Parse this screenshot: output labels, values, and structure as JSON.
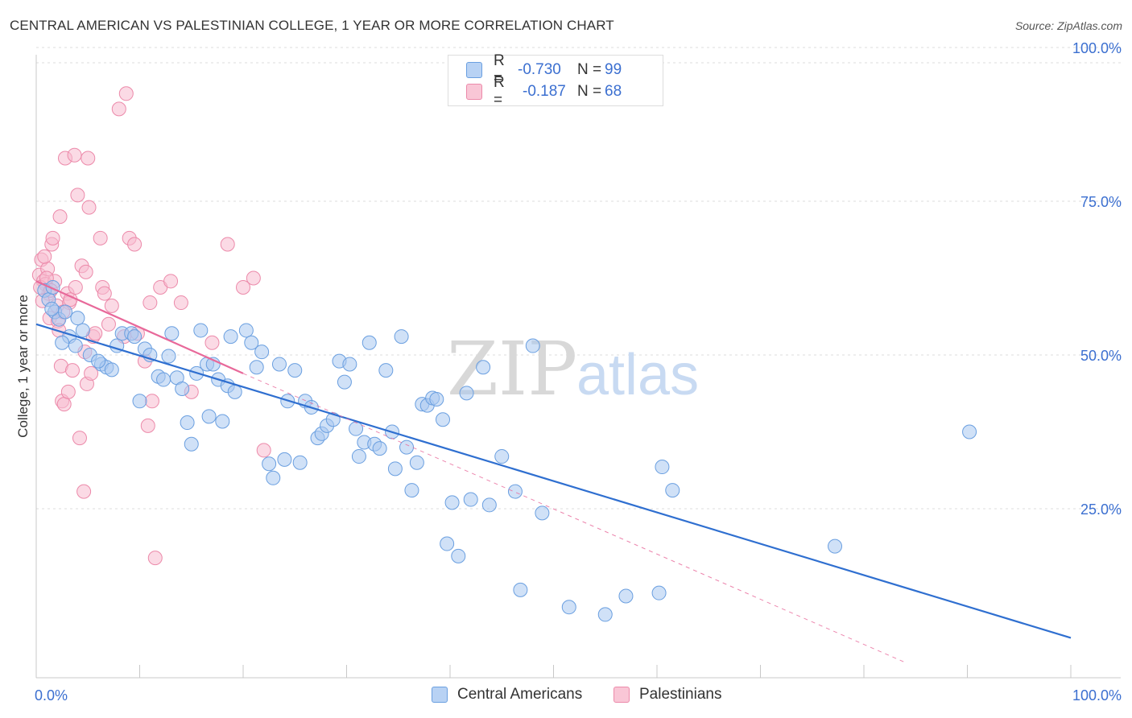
{
  "header": {
    "title": "CENTRAL AMERICAN VS PALESTINIAN COLLEGE, 1 YEAR OR MORE CORRELATION CHART",
    "source": "Source: ZipAtlas.com"
  },
  "watermark": {
    "zip": "ZIP",
    "atlas": "atlas"
  },
  "legend_top": {
    "rows": [
      {
        "r_label": "R =",
        "r_value": "-0.730",
        "n_label": "N =",
        "n_value": "99"
      },
      {
        "r_label": "R =",
        "r_value": "-0.187",
        "n_label": "N =",
        "n_value": "68"
      }
    ]
  },
  "legend_bottom": {
    "items": [
      "Central Americans",
      "Palestinians"
    ]
  },
  "colors": {
    "blue_fill": "#aac8f0",
    "blue_stroke": "#6a9fe0",
    "blue_line": "#2f6fd0",
    "pink_fill": "#f8bcd0",
    "pink_stroke": "#ec8aaa",
    "pink_line": "#e8699a",
    "grid": "#dcdcdc",
    "axis_text": "#3b6fd0"
  },
  "chart_data": {
    "type": "scatter",
    "title": "CENTRAL AMERICAN VS PALESTINIAN COLLEGE, 1 YEAR OR MORE CORRELATION CHART",
    "xlabel": "",
    "ylabel": "College, 1 year or more",
    "xlim": [
      0,
      100
    ],
    "ylim": [
      0,
      100
    ],
    "x_tick_labels": [
      "0.0%",
      "100.0%"
    ],
    "y_tick_labels": [
      "100.0%",
      "75.0%",
      "50.0%",
      "25.0%"
    ],
    "y_ticks": [
      100,
      75,
      50,
      25
    ],
    "grid": true,
    "legend_position": "top-center",
    "series": [
      {
        "name": "Central Americans",
        "r": -0.73,
        "n": 99,
        "trend": {
          "x": [
            0,
            100
          ],
          "y": [
            55.0,
            4.0
          ]
        },
        "points": [
          [
            0.8,
            60.5
          ],
          [
            1.2,
            59
          ],
          [
            1.6,
            61
          ],
          [
            1.8,
            57
          ],
          [
            2.2,
            55.8
          ],
          [
            2.8,
            57
          ],
          [
            3.2,
            53
          ],
          [
            3.8,
            51.5
          ],
          [
            4.5,
            54
          ],
          [
            5.2,
            50
          ],
          [
            6.3,
            48.5
          ],
          [
            6.8,
            48
          ],
          [
            7.3,
            47.6
          ],
          [
            7.8,
            51.5
          ],
          [
            8.3,
            53.5
          ],
          [
            9.2,
            53.5
          ],
          [
            9.5,
            53
          ],
          [
            10,
            42.5
          ],
          [
            10.5,
            51
          ],
          [
            11,
            50
          ],
          [
            11.8,
            46.5
          ],
          [
            12.3,
            46
          ],
          [
            12.8,
            49.8
          ],
          [
            13.1,
            53.5
          ],
          [
            13.6,
            46.3
          ],
          [
            14.1,
            44.5
          ],
          [
            14.6,
            39
          ],
          [
            15,
            35.5
          ],
          [
            15.5,
            47
          ],
          [
            15.9,
            54
          ],
          [
            16.5,
            48.5
          ],
          [
            16.7,
            40
          ],
          [
            17.1,
            48.5
          ],
          [
            17.6,
            46
          ],
          [
            18,
            39.2
          ],
          [
            18.5,
            45
          ],
          [
            18.8,
            53
          ],
          [
            19.2,
            44
          ],
          [
            20.3,
            54
          ],
          [
            20.8,
            52
          ],
          [
            21.3,
            48
          ],
          [
            21.8,
            50.5
          ],
          [
            22.5,
            32.3
          ],
          [
            22.9,
            30
          ],
          [
            23.5,
            48.5
          ],
          [
            24,
            33
          ],
          [
            24.3,
            42.5
          ],
          [
            25,
            47.5
          ],
          [
            25.5,
            32.5
          ],
          [
            26,
            42.5
          ],
          [
            26.6,
            41.5
          ],
          [
            27.2,
            36.5
          ],
          [
            27.6,
            37.2
          ],
          [
            28.1,
            38.5
          ],
          [
            28.7,
            39.5
          ],
          [
            29.3,
            49
          ],
          [
            29.8,
            45.6
          ],
          [
            30.3,
            48.5
          ],
          [
            30.9,
            38
          ],
          [
            31.2,
            33.5
          ],
          [
            31.7,
            35.8
          ],
          [
            32.2,
            52
          ],
          [
            32.7,
            35.5
          ],
          [
            33.2,
            34.8
          ],
          [
            33.8,
            47.5
          ],
          [
            34.4,
            37.5
          ],
          [
            34.7,
            31.5
          ],
          [
            35.3,
            53
          ],
          [
            35.8,
            35
          ],
          [
            36.3,
            28
          ],
          [
            36.8,
            32.5
          ],
          [
            37.3,
            42
          ],
          [
            37.8,
            41.8
          ],
          [
            38.3,
            43
          ],
          [
            38.7,
            42.8
          ],
          [
            39.3,
            39.5
          ],
          [
            39.7,
            19.3
          ],
          [
            40.2,
            26
          ],
          [
            40.8,
            17.3
          ],
          [
            41.6,
            43.8
          ],
          [
            42,
            26.5
          ],
          [
            43.2,
            48
          ],
          [
            43.8,
            25.6
          ],
          [
            45,
            33.5
          ],
          [
            46.3,
            27.8
          ],
          [
            46.8,
            11.8
          ],
          [
            48,
            51.5
          ],
          [
            48.9,
            24.3
          ],
          [
            51.5,
            9
          ],
          [
            55,
            7.8
          ],
          [
            57,
            10.8
          ],
          [
            60.2,
            11.3
          ],
          [
            60.5,
            31.8
          ],
          [
            61.5,
            28
          ],
          [
            77.2,
            18.9
          ],
          [
            90.2,
            37.5
          ],
          [
            1.5,
            57.5
          ],
          [
            2.5,
            52
          ],
          [
            4,
            56
          ],
          [
            6,
            49
          ]
        ]
      },
      {
        "name": "Palestinians",
        "r": -0.187,
        "n": 68,
        "trend": {
          "x": [
            0,
            20
          ],
          "y": [
            62.0,
            47.0
          ]
        },
        "trend_extension": {
          "x": [
            20,
            84
          ],
          "y": [
            47.0,
            0
          ]
        },
        "points": [
          [
            0.3,
            63
          ],
          [
            0.5,
            65.5
          ],
          [
            0.7,
            62
          ],
          [
            0.9,
            61.5
          ],
          [
            1.1,
            64
          ],
          [
            1.2,
            60
          ],
          [
            1.3,
            56
          ],
          [
            1.5,
            68
          ],
          [
            1.6,
            69
          ],
          [
            1.8,
            62
          ],
          [
            2,
            58
          ],
          [
            2.1,
            55.5
          ],
          [
            2.2,
            54
          ],
          [
            2.3,
            72.5
          ],
          [
            2.4,
            48.2
          ],
          [
            2.5,
            42.5
          ],
          [
            2.7,
            42
          ],
          [
            2.8,
            82
          ],
          [
            3,
            60
          ],
          [
            3.1,
            44
          ],
          [
            3.2,
            58.5
          ],
          [
            3.3,
            59
          ],
          [
            3.5,
            47.5
          ],
          [
            3.7,
            82.5
          ],
          [
            3.8,
            61
          ],
          [
            4,
            76
          ],
          [
            4.2,
            36.5
          ],
          [
            4.4,
            64.5
          ],
          [
            4.6,
            27.8
          ],
          [
            4.7,
            50.5
          ],
          [
            4.8,
            63.5
          ],
          [
            4.9,
            45.3
          ],
          [
            5,
            82
          ],
          [
            5.1,
            74
          ],
          [
            5.3,
            47
          ],
          [
            5.5,
            53
          ],
          [
            5.7,
            53.5
          ],
          [
            6.2,
            69
          ],
          [
            6.4,
            61
          ],
          [
            6.6,
            60
          ],
          [
            7,
            55
          ],
          [
            7.3,
            58
          ],
          [
            8,
            90
          ],
          [
            8.5,
            53
          ],
          [
            8.7,
            92.5
          ],
          [
            9,
            69
          ],
          [
            9.5,
            68
          ],
          [
            9.8,
            53.5
          ],
          [
            10.5,
            49
          ],
          [
            10.8,
            38.5
          ],
          [
            11,
            58.5
          ],
          [
            11.2,
            42.5
          ],
          [
            12,
            61
          ],
          [
            13,
            62
          ],
          [
            14,
            58.5
          ],
          [
            15,
            44
          ],
          [
            17,
            52
          ],
          [
            18.5,
            68
          ],
          [
            20,
            61
          ],
          [
            21,
            62.5
          ],
          [
            22,
            34.5
          ],
          [
            11.5,
            17
          ],
          [
            0.4,
            61
          ],
          [
            0.6,
            58.8
          ],
          [
            0.8,
            66
          ],
          [
            1,
            62.5
          ],
          [
            1.4,
            60.5
          ],
          [
            2.6,
            57
          ]
        ]
      }
    ]
  }
}
